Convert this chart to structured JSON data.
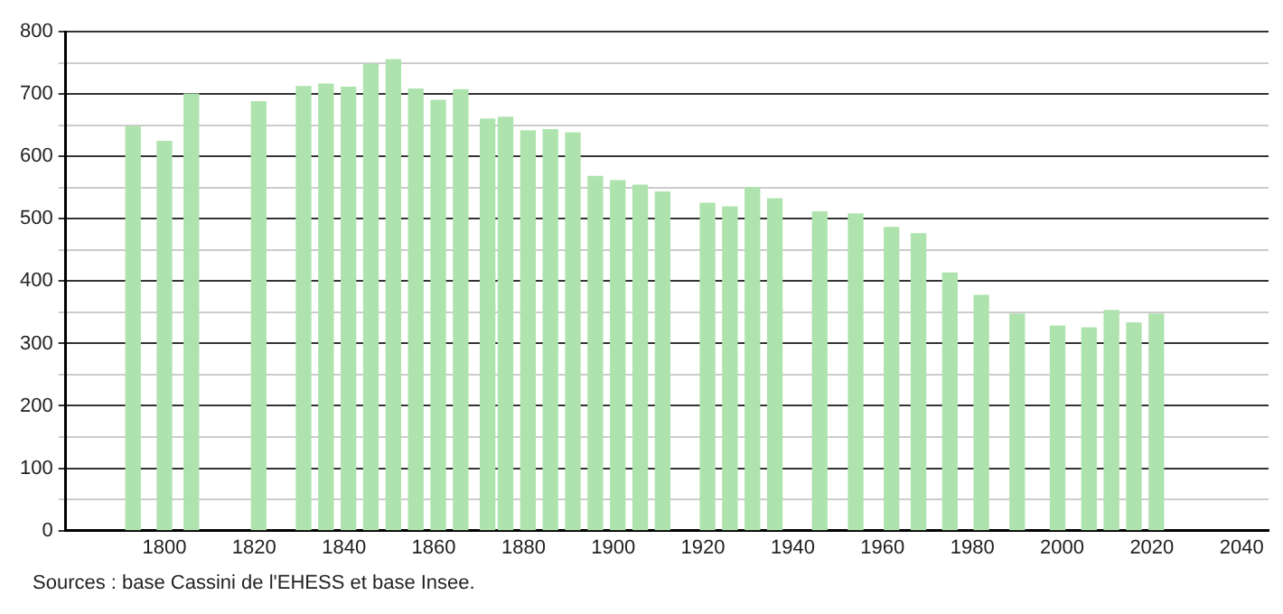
{
  "chart_data": {
    "type": "bar",
    "x": [
      1793,
      1800,
      1806,
      1821,
      1831,
      1836,
      1841,
      1846,
      1851,
      1856,
      1861,
      1866,
      1872,
      1876,
      1881,
      1886,
      1891,
      1896,
      1901,
      1906,
      1911,
      1921,
      1926,
      1931,
      1936,
      1946,
      1954,
      1962,
      1968,
      1975,
      1982,
      1990,
      1999,
      2006,
      2011,
      2016,
      2021
    ],
    "values": [
      648,
      624,
      700,
      688,
      712,
      716,
      711,
      748,
      755,
      708,
      690,
      707,
      660,
      663,
      641,
      643,
      638,
      568,
      561,
      554,
      543,
      525,
      519,
      550,
      532,
      511,
      508,
      486,
      476,
      413,
      377,
      347,
      328,
      325,
      353,
      333,
      347
    ],
    "color": "#aee3ae",
    "xlim": [
      1778,
      2046
    ],
    "xticks": [
      1800,
      1820,
      1840,
      1860,
      1880,
      1900,
      1920,
      1940,
      1960,
      1980,
      2000,
      2020,
      2040
    ],
    "ylim": [
      0,
      800
    ],
    "yticks": [
      0,
      {
        "value": 50,
        "label": null
      },
      100,
      {
        "value": 150,
        "label": null
      },
      200,
      {
        "value": 250,
        "label": null
      },
      300,
      {
        "value": 350,
        "label": null
      },
      400,
      {
        "value": 450,
        "label": null
      },
      500,
      {
        "value": 550,
        "label": null
      },
      600,
      {
        "value": 650,
        "label": null
      },
      700,
      {
        "value": 750,
        "label": null
      },
      800
    ],
    "grid": "y",
    "legend": false,
    "annotations": [
      "Sources : base Cassini de l'EHESS et base Insee."
    ]
  }
}
